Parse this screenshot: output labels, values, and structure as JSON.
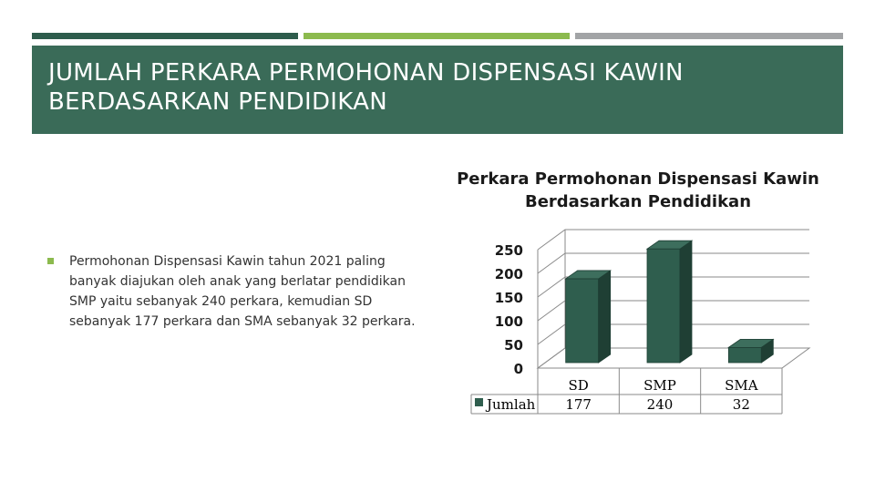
{
  "slide": {
    "title": "Jumlah Perkara Permohonan Dispensasi Kawin Berdasarkan Pendidikan",
    "bullet": "Permohonan Dispensasi Kawin tahun 2021 paling banyak diajukan oleh anak yang berlatar pendidikan SMP yaitu sebanyak 240 perkara, kemudian SD sebanyak 177 perkara dan SMA sebanyak 32 perkara.",
    "colors": {
      "stripe_dark": "#2e5c4c",
      "stripe_green": "#8cba4e",
      "stripe_gray": "#a2a4a6",
      "title_bg": "#3a6b58"
    }
  },
  "chart_data": {
    "type": "bar",
    "title": "Perkara Permohonan Dispensasi Kawin Berdasarkan Pendidikan",
    "categories": [
      "SD",
      "SMP",
      "SMA"
    ],
    "series": [
      {
        "name": "Jumlah",
        "values": [
          177,
          240,
          32
        ],
        "color": "#2f5e4e"
      }
    ],
    "ylim": [
      0,
      250
    ],
    "yticks": [
      0,
      50,
      100,
      150,
      200,
      250
    ],
    "grid": true,
    "legend": "data-table-left",
    "three_d": true
  }
}
